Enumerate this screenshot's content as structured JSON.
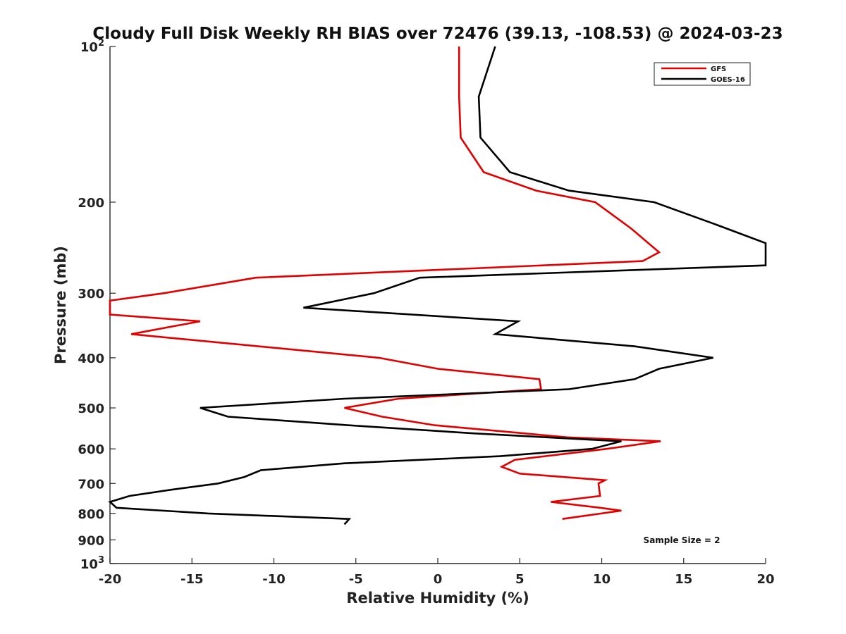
{
  "chart_data": {
    "type": "line",
    "title": "Cloudy Full Disk Weekly RH BIAS over 72476 (39.13, -108.53) @ 2024-03-23",
    "xlabel": "Relative Humidity (%)",
    "ylabel": "Pressure (mb)",
    "xlim": [
      -20,
      20
    ],
    "ylim": [
      100,
      1000
    ],
    "y_scale": "log",
    "y_reversed": true,
    "grid": false,
    "legend_placement": "top-right",
    "x_ticks": [
      -20,
      -15,
      -10,
      -5,
      0,
      5,
      10,
      15,
      20
    ],
    "x_tick_labels": [
      "-20",
      "-15",
      "-10",
      "-5",
      "0",
      "5",
      "10",
      "15",
      "20"
    ],
    "y_ticks": [
      100,
      200,
      300,
      400,
      500,
      600,
      700,
      800,
      900,
      1000
    ],
    "y_tick_labels": [
      "10^2",
      "200",
      "300",
      "400",
      "500",
      "600",
      "700",
      "800",
      "900",
      "10^3"
    ],
    "annotation": "Sample Size = 2",
    "series": [
      {
        "name": "GFS",
        "color": "#e00000",
        "points": [
          [
            1.3,
            100
          ],
          [
            1.3,
            125
          ],
          [
            1.4,
            150
          ],
          [
            2.8,
            175
          ],
          [
            6.0,
            190
          ],
          [
            9.6,
            200
          ],
          [
            11.8,
            225
          ],
          [
            13.5,
            250
          ],
          [
            12.5,
            260
          ],
          [
            -11.1,
            280
          ],
          [
            -16.7,
            300
          ],
          [
            -20.0,
            310
          ],
          [
            -20.0,
            330
          ],
          [
            -14.5,
            340
          ],
          [
            -18.7,
            360
          ],
          [
            -3.6,
            400
          ],
          [
            0.0,
            420
          ],
          [
            6.2,
            440
          ],
          [
            6.3,
            460
          ],
          [
            -2.4,
            480
          ],
          [
            -5.7,
            500
          ],
          [
            -3.4,
            520
          ],
          [
            -0.2,
            540
          ],
          [
            7.9,
            570
          ],
          [
            13.6,
            580
          ],
          [
            10.3,
            600
          ],
          [
            4.7,
            630
          ],
          [
            3.9,
            650
          ],
          [
            5.0,
            670
          ],
          [
            10.2,
            690
          ],
          [
            9.8,
            700
          ],
          [
            9.9,
            740
          ],
          [
            6.9,
            760
          ],
          [
            9.9,
            780
          ],
          [
            11.2,
            790
          ],
          [
            7.6,
            820
          ]
        ]
      },
      {
        "name": "GOES-16",
        "color": "#000000",
        "points": [
          [
            3.5,
            100
          ],
          [
            2.5,
            125
          ],
          [
            2.6,
            150
          ],
          [
            4.4,
            175
          ],
          [
            8.0,
            190
          ],
          [
            13.2,
            200
          ],
          [
            16.8,
            220
          ],
          [
            20.0,
            240
          ],
          [
            20.0,
            265
          ],
          [
            -1.1,
            280
          ],
          [
            -3.9,
            300
          ],
          [
            -8.2,
            320
          ],
          [
            4.9,
            340
          ],
          [
            3.5,
            360
          ],
          [
            12.0,
            380
          ],
          [
            16.8,
            400
          ],
          [
            13.5,
            420
          ],
          [
            12.0,
            440
          ],
          [
            8.0,
            460
          ],
          [
            -5.7,
            480
          ],
          [
            -14.5,
            500
          ],
          [
            -12.8,
            520
          ],
          [
            -5.5,
            540
          ],
          [
            2.2,
            560
          ],
          [
            11.2,
            580
          ],
          [
            9.4,
            600
          ],
          [
            3.8,
            620
          ],
          [
            -5.7,
            640
          ],
          [
            -10.8,
            660
          ],
          [
            -11.8,
            680
          ],
          [
            -13.4,
            700
          ],
          [
            -16.3,
            720
          ],
          [
            -18.8,
            740
          ],
          [
            -20.0,
            760
          ],
          [
            -19.6,
            780
          ],
          [
            -14.0,
            800
          ],
          [
            -5.4,
            820
          ],
          [
            -5.7,
            840
          ]
        ]
      }
    ]
  }
}
